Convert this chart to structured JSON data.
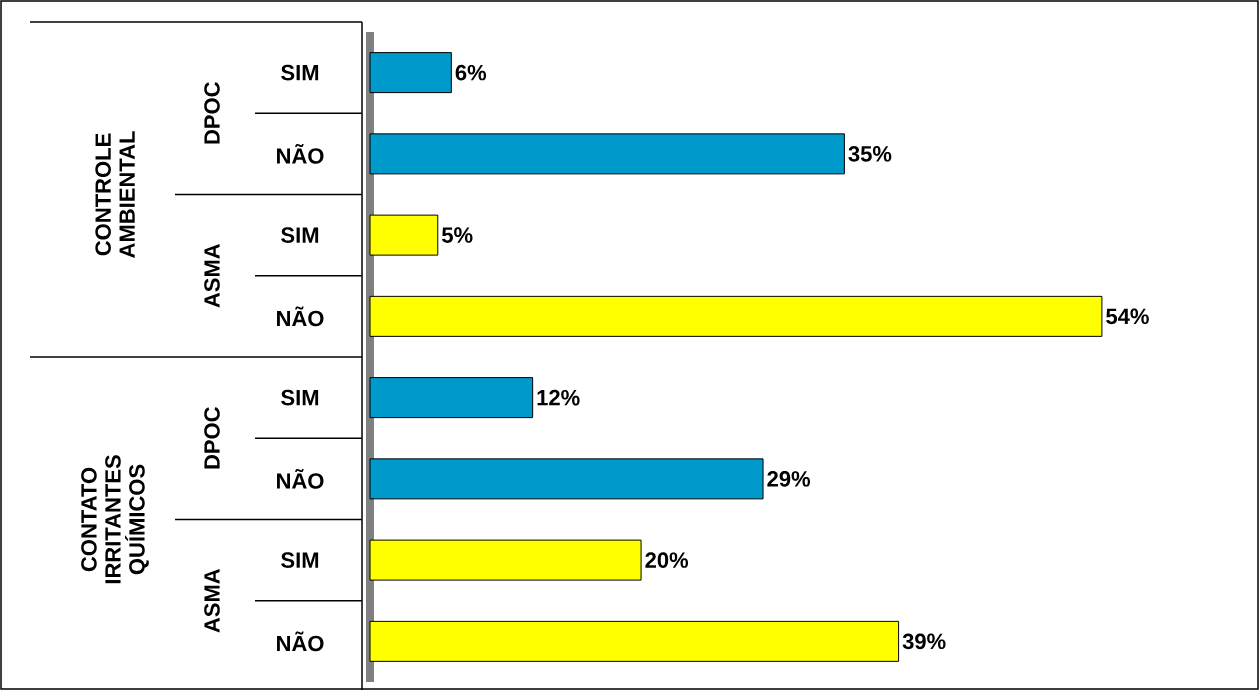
{
  "chart_data": {
    "type": "bar",
    "orientation": "horizontal",
    "categories": [
      "SIM",
      "NÃO",
      "SIM",
      "NÃO",
      "SIM",
      "NÃO",
      "SIM",
      "NÃO"
    ],
    "values": [
      6,
      35,
      5,
      54,
      12,
      29,
      20,
      39
    ],
    "colors": [
      "#0099cc",
      "#0099cc",
      "#ffff00",
      "#ffff00",
      "#0099cc",
      "#0099cc",
      "#ffff00",
      "#ffff00"
    ],
    "value_labels": [
      "6%",
      "35%",
      "5%",
      "54%",
      "12%",
      "29%",
      "20%",
      "39%"
    ],
    "annotations": [
      "DPOC",
      "ASMA",
      "DPOC",
      "ASMA",
      "CONTROLE AMBIENTAL",
      "CONTATO IRRITANTES QUÍMICOS"
    ]
  }
}
